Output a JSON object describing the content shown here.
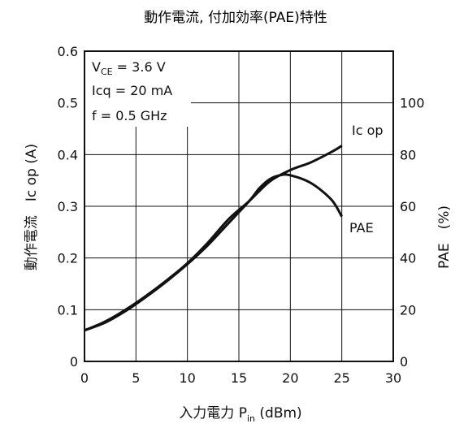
{
  "chart_data": {
    "type": "line",
    "title": "動作電流, 付加効率(PAE)特性",
    "xlabel": {
      "prefix": "入力電力 P",
      "sub": "in",
      "suffix": " (dBm)"
    },
    "ylabel_left": "動作電流　Ic op (A)",
    "ylabel_right": "PAE　(%)",
    "xlim": [
      0,
      30
    ],
    "ylim_left": [
      0,
      0.6
    ],
    "ylim_right": [
      0,
      120
    ],
    "x_ticks": [
      "0",
      "5",
      "10",
      "15",
      "20",
      "25",
      "30"
    ],
    "y_ticks_left": [
      "0",
      "0.1",
      "0.2",
      "0.3",
      "0.4",
      "0.5",
      "0.6"
    ],
    "y_ticks_right": [
      "0",
      "20",
      "40",
      "60",
      "80",
      "100"
    ],
    "grid": true,
    "conditions": {
      "vce": {
        "prefix": "V",
        "sub": "CE",
        "suffix": " = 3.6 V"
      },
      "icq": "Icq = 20 mA",
      "freq": "f = 0.5 GHz"
    },
    "series": [
      {
        "name": "Ic op",
        "axis": "left",
        "x": [
          0,
          2,
          4,
          6,
          8,
          10,
          12,
          14,
          16,
          18,
          20,
          22,
          24,
          25
        ],
        "y": [
          0.06,
          0.077,
          0.1,
          0.127,
          0.157,
          0.19,
          0.23,
          0.275,
          0.31,
          0.348,
          0.37,
          0.385,
          0.405,
          0.417
        ]
      },
      {
        "name": "PAE",
        "axis": "right",
        "x": [
          0,
          2,
          4,
          6,
          8,
          10,
          12,
          14,
          16,
          17,
          18,
          19,
          20,
          22,
          24,
          25
        ],
        "y": [
          12,
          15,
          19.5,
          25,
          31,
          37.6,
          45,
          53.5,
          62,
          67,
          70.5,
          72,
          72,
          69,
          62.5,
          56
        ]
      }
    ]
  }
}
